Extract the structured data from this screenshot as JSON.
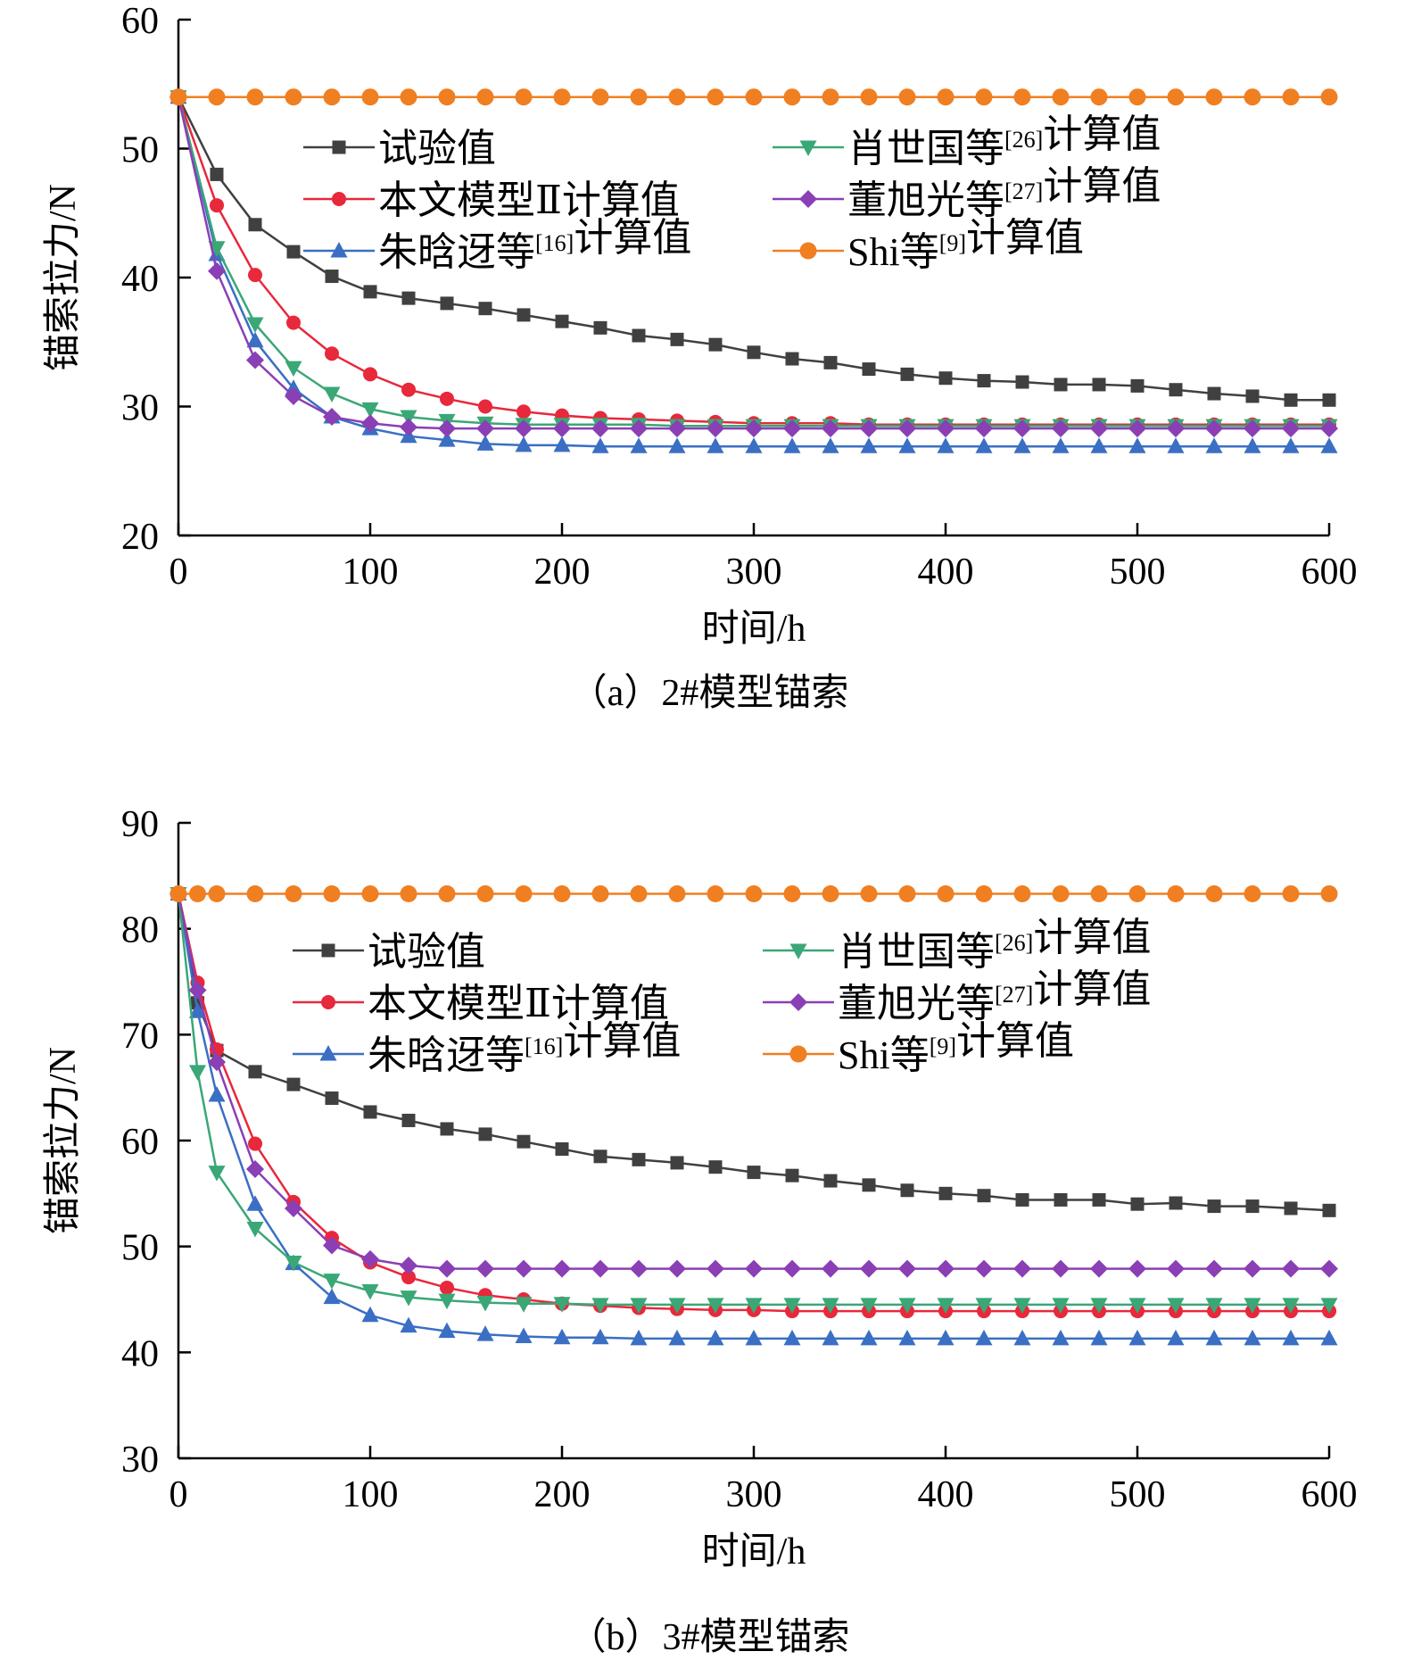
{
  "chart_data": [
    {
      "type": "line",
      "caption": "（a）2#模型锚索",
      "xlabel": "时间/h",
      "ylabel": "锚索拉力/N",
      "xlim": [
        0,
        600
      ],
      "ylim": [
        20,
        60
      ],
      "xticks": [
        0,
        100,
        200,
        300,
        400,
        500,
        600
      ],
      "yticks": [
        20,
        30,
        40,
        50,
        60
      ],
      "grid": false,
      "legend_position": "top-right, two columns",
      "series": [
        {
          "name": "试验值",
          "name_parts": [
            "试验值"
          ],
          "color": "#404040",
          "marker": "square",
          "x": [
            0,
            20,
            40,
            60,
            80,
            100,
            120,
            140,
            160,
            180,
            200,
            220,
            240,
            260,
            280,
            300,
            320,
            340,
            360,
            380,
            400,
            420,
            440,
            460,
            480,
            500,
            520,
            540,
            560,
            580,
            600
          ],
          "y": [
            54,
            48,
            44.1,
            42,
            40.1,
            38.9,
            38.4,
            38,
            37.6,
            37.1,
            36.6,
            36.1,
            35.5,
            35.2,
            34.8,
            34.2,
            33.7,
            33.4,
            32.9,
            32.5,
            32.2,
            32.0,
            31.9,
            31.7,
            31.7,
            31.6,
            31.3,
            31.0,
            30.8,
            30.5,
            30.5
          ]
        },
        {
          "name": "本文模型Ⅱ计算值",
          "name_parts": [
            "本文模型Ⅱ计算值"
          ],
          "color": "#e8283b",
          "marker": "circle",
          "x": [
            0,
            20,
            40,
            60,
            80,
            100,
            120,
            140,
            160,
            180,
            200,
            220,
            240,
            260,
            280,
            300,
            320,
            340,
            360,
            380,
            400,
            420,
            440,
            460,
            480,
            500,
            520,
            540,
            560,
            580,
            600
          ],
          "y": [
            54,
            45.6,
            40.2,
            36.5,
            34.1,
            32.5,
            31.3,
            30.6,
            30.0,
            29.6,
            29.3,
            29.1,
            29.0,
            28.9,
            28.8,
            28.7,
            28.7,
            28.7,
            28.6,
            28.6,
            28.6,
            28.6,
            28.6,
            28.6,
            28.6,
            28.6,
            28.6,
            28.6,
            28.6,
            28.6,
            28.6
          ]
        },
        {
          "name": "朱晗迓等[16]计算值",
          "name_parts": [
            "朱晗迓等",
            "[16]",
            "计算值"
          ],
          "color": "#3a6fc4",
          "marker": "triangle",
          "x": [
            0,
            20,
            40,
            60,
            80,
            100,
            120,
            140,
            160,
            180,
            200,
            220,
            240,
            260,
            280,
            300,
            320,
            340,
            360,
            380,
            400,
            420,
            440,
            460,
            480,
            500,
            520,
            540,
            560,
            580,
            600
          ],
          "y": [
            54,
            41.8,
            35.1,
            31.4,
            29.2,
            28.3,
            27.7,
            27.4,
            27.1,
            27.0,
            27.0,
            26.9,
            26.9,
            26.9,
            26.9,
            26.9,
            26.9,
            26.9,
            26.9,
            26.9,
            26.9,
            26.9,
            26.9,
            26.9,
            26.9,
            26.9,
            26.9,
            26.9,
            26.9,
            26.9,
            26.9
          ]
        },
        {
          "name": "肖世国等[26]计算值",
          "name_parts": [
            "肖世国等",
            "[26]",
            "计算值"
          ],
          "color": "#3aa776",
          "marker": "triangle-down",
          "x": [
            0,
            20,
            40,
            60,
            80,
            100,
            120,
            140,
            160,
            180,
            200,
            220,
            240,
            260,
            280,
            300,
            320,
            340,
            360,
            380,
            400,
            420,
            440,
            460,
            480,
            500,
            520,
            540,
            560,
            580,
            600
          ],
          "y": [
            54,
            42.3,
            36.4,
            33.0,
            31.0,
            29.8,
            29.2,
            28.9,
            28.7,
            28.6,
            28.6,
            28.6,
            28.6,
            28.5,
            28.5,
            28.5,
            28.5,
            28.5,
            28.5,
            28.5,
            28.5,
            28.5,
            28.5,
            28.5,
            28.5,
            28.5,
            28.5,
            28.5,
            28.5,
            28.5,
            28.5
          ]
        },
        {
          "name": "董旭光等[27]计算值",
          "name_parts": [
            "董旭光等",
            "[27]",
            "计算值"
          ],
          "color": "#8a3fb5",
          "marker": "diamond",
          "x": [
            0,
            20,
            40,
            60,
            80,
            100,
            120,
            140,
            160,
            180,
            200,
            220,
            240,
            260,
            280,
            300,
            320,
            340,
            360,
            380,
            400,
            420,
            440,
            460,
            480,
            500,
            520,
            540,
            560,
            580,
            600
          ],
          "y": [
            54,
            40.5,
            33.6,
            30.8,
            29.2,
            28.7,
            28.4,
            28.3,
            28.3,
            28.3,
            28.3,
            28.3,
            28.3,
            28.3,
            28.3,
            28.3,
            28.3,
            28.3,
            28.3,
            28.3,
            28.3,
            28.3,
            28.3,
            28.3,
            28.3,
            28.3,
            28.3,
            28.3,
            28.3,
            28.3,
            28.3
          ]
        },
        {
          "name": "Shi等[9]计算值",
          "name_parts": [
            "Shi等",
            "[9]",
            "计算值"
          ],
          "color": "#f07f22",
          "marker": "circle-large",
          "x": [
            0,
            20,
            40,
            60,
            80,
            100,
            120,
            140,
            160,
            180,
            200,
            220,
            240,
            260,
            280,
            300,
            320,
            340,
            360,
            380,
            400,
            420,
            440,
            460,
            480,
            500,
            520,
            540,
            560,
            580,
            600
          ],
          "y": [
            54,
            54,
            54,
            54,
            54,
            54,
            54,
            54,
            54,
            54,
            54,
            54,
            54,
            54,
            54,
            54,
            54,
            54,
            54,
            54,
            54,
            54,
            54,
            54,
            54,
            54,
            54,
            54,
            54,
            54,
            54
          ]
        }
      ]
    },
    {
      "type": "line",
      "caption": "（b）3#模型锚索",
      "xlabel": "时间/h",
      "ylabel": "锚索拉力/N",
      "xlim": [
        0,
        600
      ],
      "ylim": [
        30,
        90
      ],
      "xticks": [
        0,
        100,
        200,
        300,
        400,
        500,
        600
      ],
      "yticks": [
        30,
        40,
        50,
        60,
        70,
        80,
        90
      ],
      "grid": false,
      "legend_position": "top-right, two columns",
      "series": [
        {
          "name": "试验值",
          "name_parts": [
            "试验值"
          ],
          "color": "#404040",
          "marker": "square",
          "x": [
            0,
            10,
            20,
            40,
            60,
            80,
            100,
            120,
            140,
            160,
            180,
            200,
            220,
            240,
            260,
            280,
            300,
            320,
            340,
            360,
            380,
            400,
            420,
            440,
            460,
            480,
            500,
            520,
            540,
            560,
            580,
            600
          ],
          "y": [
            83.3,
            73,
            68.5,
            66.5,
            65.3,
            64,
            62.7,
            61.9,
            61.1,
            60.6,
            59.9,
            59.2,
            58.5,
            58.2,
            57.9,
            57.5,
            57.0,
            56.7,
            56.2,
            55.8,
            55.3,
            55.0,
            54.8,
            54.4,
            54.4,
            54.4,
            54.0,
            54.1,
            53.8,
            53.8,
            53.6,
            53.4
          ]
        },
        {
          "name": "本文模型Ⅱ计算值",
          "name_parts": [
            "本文模型Ⅱ计算值"
          ],
          "color": "#e8283b",
          "marker": "circle",
          "x": [
            0,
            10,
            20,
            40,
            60,
            80,
            100,
            120,
            140,
            160,
            180,
            200,
            220,
            240,
            260,
            280,
            300,
            320,
            340,
            360,
            380,
            400,
            420,
            440,
            460,
            480,
            500,
            520,
            540,
            560,
            580,
            600
          ],
          "y": [
            83.3,
            74.9,
            68.6,
            59.7,
            54.2,
            50.8,
            48.5,
            47.1,
            46.1,
            45.4,
            45.0,
            44.6,
            44.4,
            44.2,
            44.1,
            44.0,
            44.0,
            43.9,
            43.9,
            43.9,
            43.9,
            43.9,
            43.9,
            43.9,
            43.9,
            43.9,
            43.9,
            43.9,
            43.9,
            43.9,
            43.9,
            43.9
          ]
        },
        {
          "name": "朱晗迓等[16]计算值",
          "name_parts": [
            "朱晗迓等",
            "[16]",
            "计算值"
          ],
          "color": "#3a6fc4",
          "marker": "triangle",
          "x": [
            0,
            10,
            20,
            40,
            60,
            80,
            100,
            120,
            140,
            160,
            180,
            200,
            220,
            240,
            260,
            280,
            300,
            320,
            340,
            360,
            380,
            400,
            420,
            440,
            460,
            480,
            500,
            520,
            540,
            560,
            580,
            600
          ],
          "y": [
            83.3,
            72.2,
            64.3,
            54.0,
            48.4,
            45.2,
            43.5,
            42.5,
            42.0,
            41.7,
            41.5,
            41.4,
            41.4,
            41.3,
            41.3,
            41.3,
            41.3,
            41.3,
            41.3,
            41.3,
            41.3,
            41.3,
            41.3,
            41.3,
            41.3,
            41.3,
            41.3,
            41.3,
            41.3,
            41.3,
            41.3,
            41.3
          ]
        },
        {
          "name": "肖世国等[26]计算值",
          "name_parts": [
            "肖世国等",
            "[26]",
            "计算值"
          ],
          "color": "#3aa776",
          "marker": "triangle-down",
          "x": [
            0,
            10,
            20,
            40,
            60,
            80,
            100,
            120,
            140,
            160,
            180,
            200,
            220,
            240,
            260,
            280,
            300,
            320,
            340,
            360,
            380,
            400,
            420,
            440,
            460,
            480,
            500,
            520,
            540,
            560,
            580,
            600
          ],
          "y": [
            83.3,
            66.5,
            57.0,
            51.7,
            48.5,
            46.8,
            45.8,
            45.2,
            44.9,
            44.7,
            44.6,
            44.6,
            44.5,
            44.5,
            44.5,
            44.5,
            44.5,
            44.5,
            44.5,
            44.5,
            44.5,
            44.5,
            44.5,
            44.5,
            44.5,
            44.5,
            44.5,
            44.5,
            44.5,
            44.5,
            44.5,
            44.5
          ]
        },
        {
          "name": "董旭光等[27]计算值",
          "name_parts": [
            "董旭光等",
            "[27]",
            "计算值"
          ],
          "color": "#8a3fb5",
          "marker": "diamond",
          "x": [
            0,
            10,
            20,
            40,
            60,
            80,
            100,
            120,
            140,
            160,
            180,
            200,
            220,
            240,
            260,
            280,
            300,
            320,
            340,
            360,
            380,
            400,
            420,
            440,
            460,
            480,
            500,
            520,
            540,
            560,
            580,
            600
          ],
          "y": [
            83.3,
            74.2,
            67.4,
            57.3,
            53.6,
            50.1,
            48.8,
            48.2,
            47.9,
            47.9,
            47.9,
            47.9,
            47.9,
            47.9,
            47.9,
            47.9,
            47.9,
            47.9,
            47.9,
            47.9,
            47.9,
            47.9,
            47.9,
            47.9,
            47.9,
            47.9,
            47.9,
            47.9,
            47.9,
            47.9,
            47.9,
            47.9
          ]
        },
        {
          "name": "Shi等[9]计算值",
          "name_parts": [
            "Shi等",
            "[9]",
            "计算值"
          ],
          "color": "#f07f22",
          "marker": "circle-large",
          "x": [
            0,
            10,
            20,
            40,
            60,
            80,
            100,
            120,
            140,
            160,
            180,
            200,
            220,
            240,
            260,
            280,
            300,
            320,
            340,
            360,
            380,
            400,
            420,
            440,
            460,
            480,
            500,
            520,
            540,
            560,
            580,
            600
          ],
          "y": [
            83.3,
            83.3,
            83.3,
            83.3,
            83.3,
            83.3,
            83.3,
            83.3,
            83.3,
            83.3,
            83.3,
            83.3,
            83.3,
            83.3,
            83.3,
            83.3,
            83.3,
            83.3,
            83.3,
            83.3,
            83.3,
            83.3,
            83.3,
            83.3,
            83.3,
            83.3,
            83.3,
            83.3,
            83.3,
            83.3,
            83.3,
            83.3
          ]
        }
      ]
    }
  ]
}
